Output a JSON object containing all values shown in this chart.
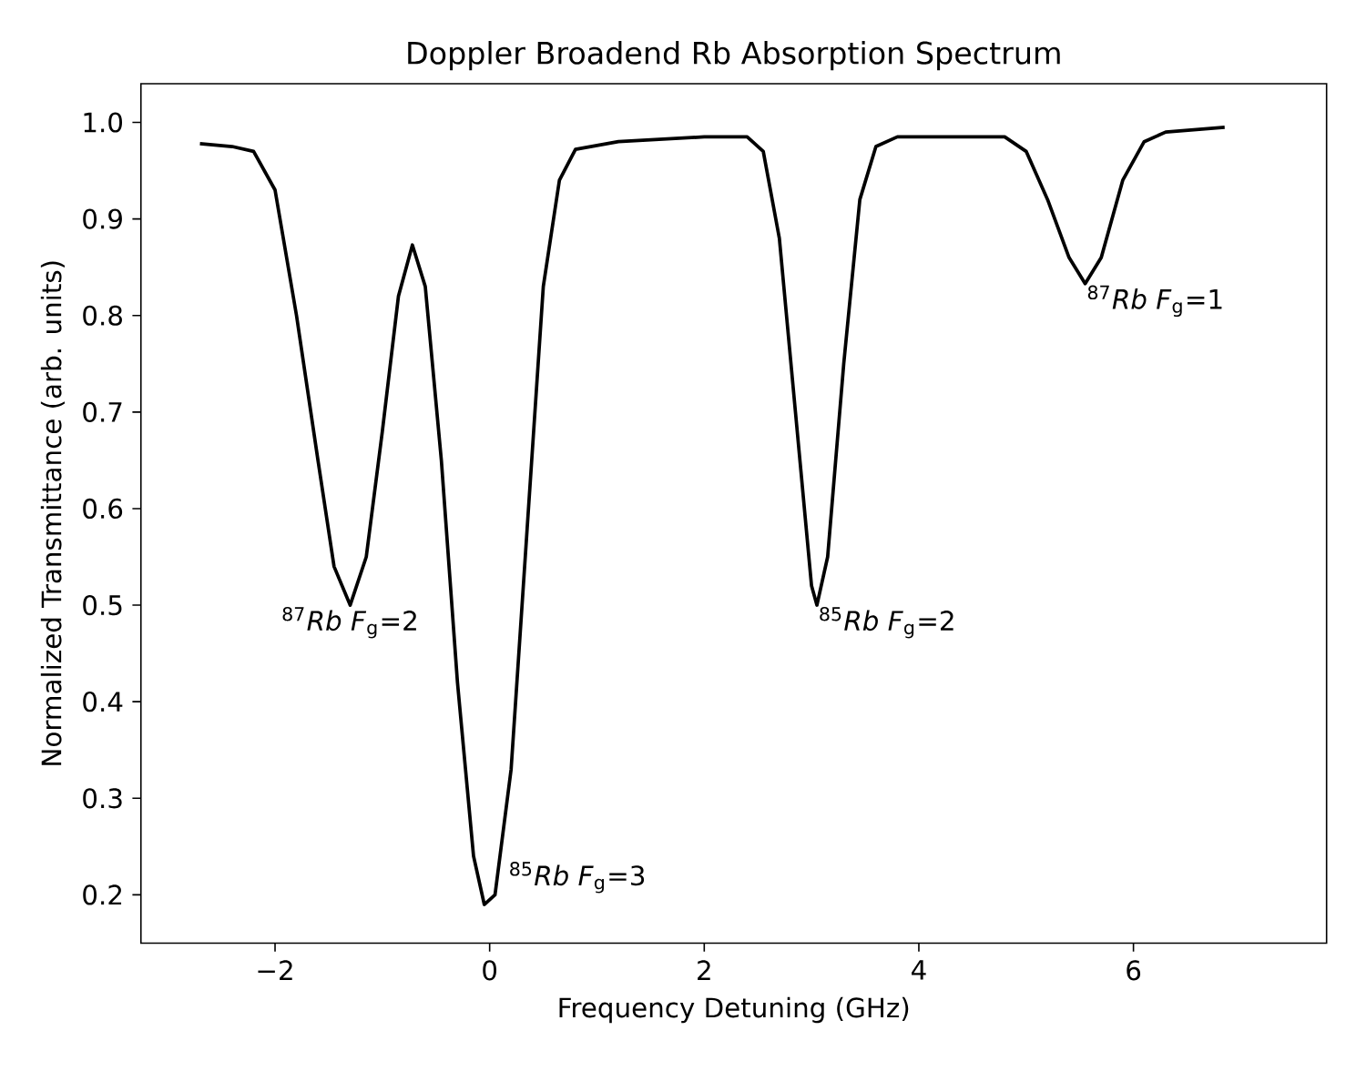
{
  "chart_data": {
    "type": "line",
    "title": "Doppler Broadend Rb Absorption Spectrum",
    "xlabel": "Frequency Detuning (GHz)",
    "ylabel": "Normalized Transmittance (arb. units)",
    "xlim": [
      -3.25,
      7.8
    ],
    "ylim": [
      0.15,
      1.04
    ],
    "xticks": [
      {
        "value": -2,
        "label": "−2"
      },
      0,
      2,
      4,
      6
    ],
    "yticks": [
      {
        "value": 0.2,
        "label": "0.2"
      },
      {
        "value": 0.3,
        "label": "0.3"
      },
      {
        "value": 0.4,
        "label": "0.4"
      },
      {
        "value": 0.5,
        "label": "0.5"
      },
      {
        "value": 0.6,
        "label": "0.6"
      },
      {
        "value": 0.7,
        "label": "0.7"
      },
      {
        "value": 0.8,
        "label": "0.8"
      },
      {
        "value": 0.9,
        "label": "0.9"
      },
      {
        "value": 1.0,
        "label": "1.0"
      }
    ],
    "grid": false,
    "marker": "none",
    "line_style": "solid",
    "series": [
      {
        "color": "#000000",
        "x": [
          -2.7,
          -2.4,
          -2.2,
          -2.0,
          -1.8,
          -1.6,
          -1.45,
          -1.3,
          -1.15,
          -1.0,
          -0.85,
          -0.72,
          -0.6,
          -0.45,
          -0.3,
          -0.15,
          -0.05,
          0.05,
          0.2,
          0.35,
          0.5,
          0.65,
          0.8,
          1.2,
          2.0,
          2.4,
          2.55,
          2.7,
          2.85,
          3.0,
          3.05,
          3.15,
          3.3,
          3.45,
          3.6,
          3.8,
          4.8,
          5.0,
          5.2,
          5.4,
          5.55,
          5.7,
          5.9,
          6.1,
          6.3,
          6.85
        ],
        "values": [
          0.978,
          0.975,
          0.97,
          0.93,
          0.8,
          0.65,
          0.54,
          0.5,
          0.55,
          0.68,
          0.82,
          0.873,
          0.83,
          0.65,
          0.42,
          0.24,
          0.19,
          0.2,
          0.33,
          0.58,
          0.83,
          0.94,
          0.972,
          0.98,
          0.985,
          0.985,
          0.97,
          0.88,
          0.7,
          0.52,
          0.5,
          0.55,
          0.75,
          0.92,
          0.975,
          0.985,
          0.985,
          0.97,
          0.92,
          0.86,
          0.833,
          0.86,
          0.94,
          0.98,
          0.99,
          0.995
        ]
      }
    ],
    "annotations": [
      {
        "text": "$^{87}$*Rb F*$_{g}$=2",
        "x": -1.3,
        "y": 0.5
      },
      {
        "text": "$^{85}$*Rb F*$_{g}$=3",
        "x": 0.05,
        "y": 0.2
      },
      {
        "text": "$^{85}$*Rb F*$_{g}$=2",
        "x": 3.05,
        "y": 0.5
      },
      {
        "text": "$^{87}$*Rb F*$_{g}$=1",
        "x": 5.55,
        "y": 0.833
      }
    ]
  }
}
